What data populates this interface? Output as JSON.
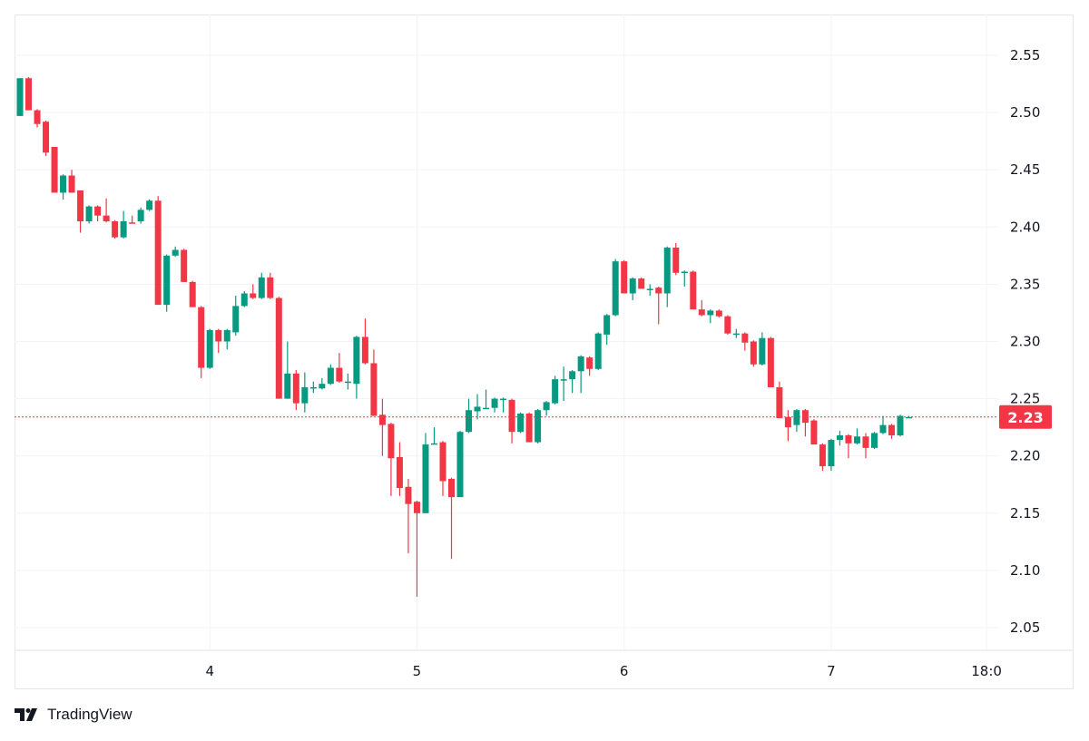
{
  "chart_data": {
    "type": "candlestick",
    "title": "",
    "colors": {
      "up": "#089981",
      "down": "#f23645",
      "grid": "#f0f3fa",
      "last_price": "#f23645"
    },
    "ylim": [
      2.03,
      2.58
    ],
    "y_ticks": [
      "2.05",
      "2.10",
      "2.15",
      "2.20",
      "2.25",
      "2.30",
      "2.35",
      "2.40",
      "2.45",
      "2.50",
      "2.55"
    ],
    "x_ticks": [
      {
        "label": "4",
        "candle": 22
      },
      {
        "label": "5",
        "candle": 46
      },
      {
        "label": "6",
        "candle": 70
      },
      {
        "label": "7",
        "candle": 94
      },
      {
        "label": "18:0",
        "candle": 112
      }
    ],
    "last_price": {
      "value": 2.234,
      "label": "2.23"
    },
    "grid": true,
    "candles_ohlc": [
      [
        2.497,
        2.53,
        2.497,
        2.53
      ],
      [
        2.53,
        2.531,
        2.502,
        2.502
      ],
      [
        2.502,
        2.503,
        2.487,
        2.49
      ],
      [
        2.492,
        2.493,
        2.462,
        2.465
      ],
      [
        2.47,
        2.47,
        2.43,
        2.43
      ],
      [
        2.43,
        2.446,
        2.424,
        2.445
      ],
      [
        2.445,
        2.45,
        2.43,
        2.43
      ],
      [
        2.432,
        2.432,
        2.395,
        2.405
      ],
      [
        2.405,
        2.419,
        2.403,
        2.418
      ],
      [
        2.418,
        2.419,
        2.405,
        2.41
      ],
      [
        2.41,
        2.425,
        2.404,
        2.405
      ],
      [
        2.405,
        2.406,
        2.39,
        2.391
      ],
      [
        2.391,
        2.414,
        2.39,
        2.405
      ],
      [
        2.404,
        2.41,
        2.403,
        2.403
      ],
      [
        2.405,
        2.417,
        2.403,
        2.415
      ],
      [
        2.415,
        2.424,
        2.414,
        2.423
      ],
      [
        2.423,
        2.427,
        2.332,
        2.332
      ],
      [
        2.332,
        2.376,
        2.326,
        2.375
      ],
      [
        2.375,
        2.383,
        2.374,
        2.38
      ],
      [
        2.38,
        2.381,
        2.352,
        2.352
      ],
      [
        2.352,
        2.353,
        2.33,
        2.33
      ],
      [
        2.33,
        2.331,
        2.268,
        2.277
      ],
      [
        2.277,
        2.311,
        2.276,
        2.31
      ],
      [
        2.31,
        2.311,
        2.29,
        2.3
      ],
      [
        2.3,
        2.311,
        2.293,
        2.31
      ],
      [
        2.308,
        2.34,
        2.305,
        2.331
      ],
      [
        2.331,
        2.344,
        2.33,
        2.342
      ],
      [
        2.342,
        2.35,
        2.337,
        2.338
      ],
      [
        2.338,
        2.36,
        2.337,
        2.356
      ],
      [
        2.356,
        2.36,
        2.337,
        2.338
      ],
      [
        2.338,
        2.339,
        2.25,
        2.25
      ],
      [
        2.25,
        2.3,
        2.25,
        2.272
      ],
      [
        2.272,
        2.275,
        2.24,
        2.246
      ],
      [
        2.246,
        2.273,
        2.238,
        2.26
      ],
      [
        2.26,
        2.265,
        2.255,
        2.26
      ],
      [
        2.259,
        2.268,
        2.258,
        2.263
      ],
      [
        2.263,
        2.28,
        2.262,
        2.277
      ],
      [
        2.277,
        2.29,
        2.264,
        2.265
      ],
      [
        2.265,
        2.272,
        2.258,
        2.265
      ],
      [
        2.263,
        2.305,
        2.25,
        2.304
      ],
      [
        2.304,
        2.32,
        2.28,
        2.281
      ],
      [
        2.281,
        2.293,
        2.235,
        2.235
      ],
      [
        2.236,
        2.25,
        2.2,
        2.227
      ],
      [
        2.228,
        2.229,
        2.165,
        2.198
      ],
      [
        2.199,
        2.212,
        2.165,
        2.172
      ],
      [
        2.173,
        2.18,
        2.115,
        2.158
      ],
      [
        2.16,
        2.161,
        2.077,
        2.15
      ],
      [
        2.15,
        2.22,
        2.15,
        2.21
      ],
      [
        2.211,
        2.225,
        2.21,
        2.211
      ],
      [
        2.212,
        2.213,
        2.165,
        2.178
      ],
      [
        2.18,
        2.181,
        2.11,
        2.164
      ],
      [
        2.164,
        2.222,
        2.164,
        2.221
      ],
      [
        2.221,
        2.25,
        2.22,
        2.24
      ],
      [
        2.239,
        2.254,
        2.232,
        2.243
      ],
      [
        2.242,
        2.258,
        2.241,
        2.242
      ],
      [
        2.242,
        2.251,
        2.238,
        2.25
      ],
      [
        2.25,
        2.251,
        2.238,
        2.25
      ],
      [
        2.249,
        2.25,
        2.211,
        2.221
      ],
      [
        2.221,
        2.238,
        2.22,
        2.237
      ],
      [
        2.237,
        2.238,
        2.212,
        2.212
      ],
      [
        2.212,
        2.241,
        2.211,
        2.24
      ],
      [
        2.24,
        2.248,
        2.235,
        2.247
      ],
      [
        2.246,
        2.27,
        2.245,
        2.267
      ],
      [
        2.267,
        2.278,
        2.248,
        2.267
      ],
      [
        2.267,
        2.275,
        2.255,
        2.274
      ],
      [
        2.274,
        2.288,
        2.255,
        2.287
      ],
      [
        2.286,
        2.287,
        2.27,
        2.276
      ],
      [
        2.276,
        2.308,
        2.275,
        2.307
      ],
      [
        2.306,
        2.324,
        2.297,
        2.323
      ],
      [
        2.323,
        2.372,
        2.322,
        2.37
      ],
      [
        2.37,
        2.371,
        2.342,
        2.342
      ],
      [
        2.342,
        2.356,
        2.336,
        2.355
      ],
      [
        2.355,
        2.356,
        2.346,
        2.346
      ],
      [
        2.346,
        2.35,
        2.34,
        2.346
      ],
      [
        2.347,
        2.348,
        2.315,
        2.342
      ],
      [
        2.342,
        2.383,
        2.33,
        2.382
      ],
      [
        2.382,
        2.386,
        2.358,
        2.36
      ],
      [
        2.361,
        2.362,
        2.348,
        2.361
      ],
      [
        2.361,
        2.362,
        2.328,
        2.328
      ],
      [
        2.328,
        2.336,
        2.322,
        2.323
      ],
      [
        2.323,
        2.328,
        2.316,
        2.327
      ],
      [
        2.327,
        2.328,
        2.321,
        2.322
      ],
      [
        2.322,
        2.323,
        2.306,
        2.307
      ],
      [
        2.307,
        2.311,
        2.303,
        2.307
      ],
      [
        2.307,
        2.308,
        2.292,
        2.299
      ],
      [
        2.3,
        2.301,
        2.278,
        2.28
      ],
      [
        2.28,
        2.308,
        2.279,
        2.303
      ],
      [
        2.303,
        2.304,
        2.26,
        2.26
      ],
      [
        2.26,
        2.265,
        2.233,
        2.233
      ],
      [
        2.234,
        2.24,
        2.213,
        2.225
      ],
      [
        2.227,
        2.241,
        2.221,
        2.24
      ],
      [
        2.24,
        2.241,
        2.217,
        2.229
      ],
      [
        2.231,
        2.232,
        2.21,
        2.21
      ],
      [
        2.21,
        2.211,
        2.187,
        2.191
      ],
      [
        2.191,
        2.215,
        2.187,
        2.214
      ],
      [
        2.214,
        2.222,
        2.209,
        2.218
      ],
      [
        2.218,
        2.219,
        2.198,
        2.211
      ],
      [
        2.211,
        2.224,
        2.21,
        2.217
      ],
      [
        2.217,
        2.22,
        2.198,
        2.207
      ],
      [
        2.207,
        2.221,
        2.206,
        2.22
      ],
      [
        2.22,
        2.235,
        2.219,
        2.227
      ],
      [
        2.227,
        2.228,
        2.215,
        2.218
      ],
      [
        2.218,
        2.236,
        2.217,
        2.235
      ],
      [
        2.234,
        2.235,
        2.233,
        2.234
      ]
    ]
  },
  "branding": {
    "logo_text": "TradingView"
  }
}
